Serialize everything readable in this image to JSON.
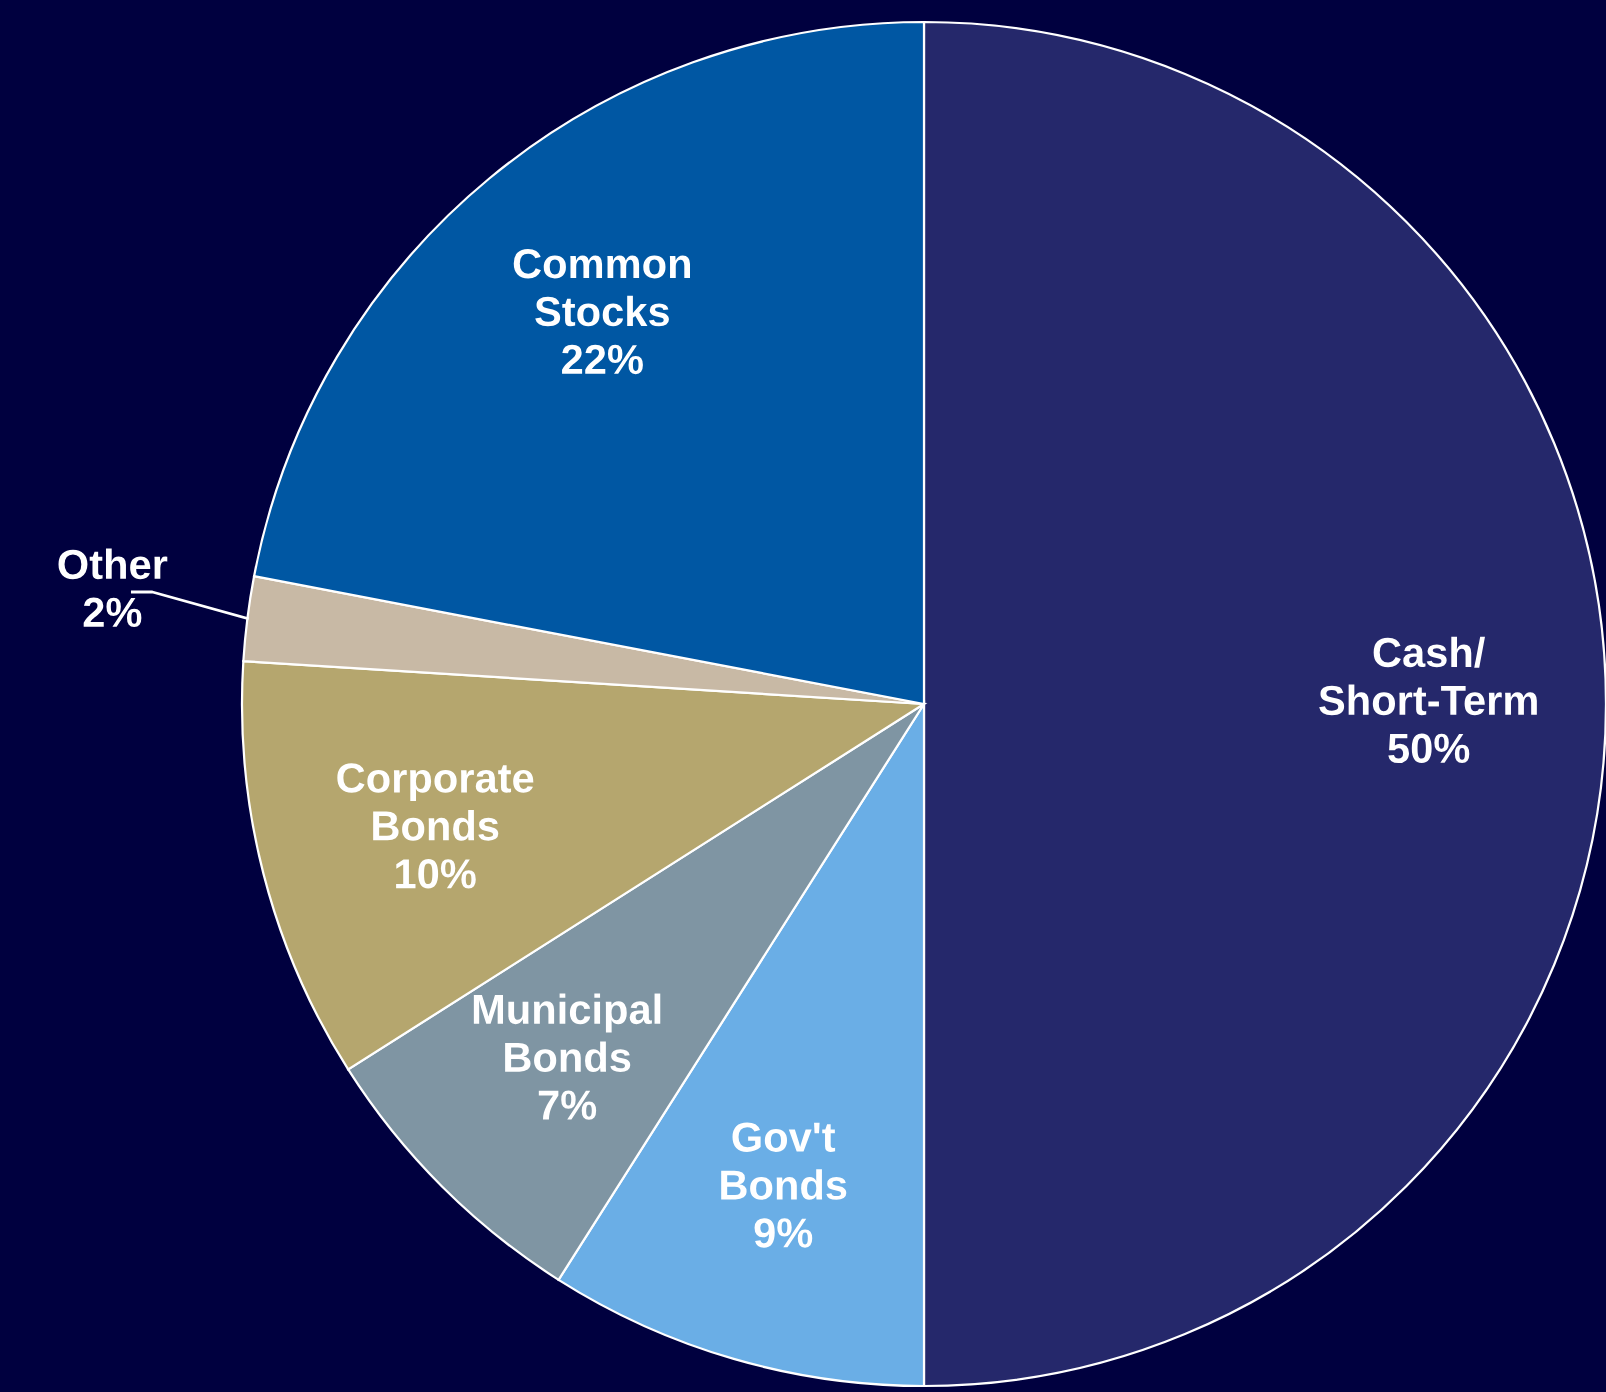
{
  "chart_data": {
    "type": "pie",
    "categories": [
      "Cash/\nShort-Term",
      "Gov't\nBonds",
      "Municipal\nBonds",
      "Corporate\nBonds",
      "Other",
      "Common\nStocks"
    ],
    "values": [
      50,
      9,
      7,
      10,
      2,
      22
    ],
    "value_labels": [
      "50%",
      "9%",
      "7%",
      "10%",
      "2%",
      "22%"
    ],
    "colors": [
      "#25286b",
      "#6aaee6",
      "#7f95a3",
      "#b5a66e",
      "#c8b9a5",
      "#0057a3"
    ]
  }
}
